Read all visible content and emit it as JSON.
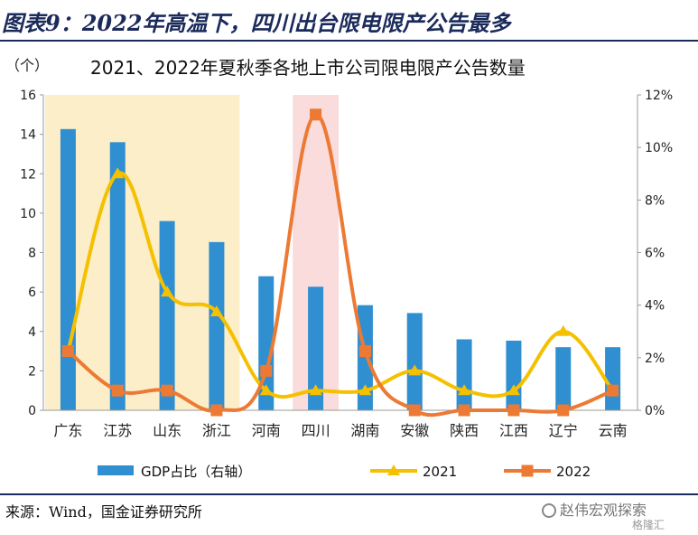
{
  "header": {
    "title": "图表9：2022年高温下，四川出台限电限产公告最多"
  },
  "footer": {
    "source": "来源：Wind，国金证券研究所",
    "watermark": "赵伟宏观探索",
    "watermark_sub": "格隆汇"
  },
  "colors": {
    "bar": "#2f8fd0",
    "line_2021": "#f5c000",
    "line_2022": "#ec7a34",
    "shade_yellow": "#fbeec8",
    "shade_pink": "#fadcdc",
    "title_navy": "#1a2a5a"
  },
  "chart_data": {
    "type": "bar",
    "title": "2021、2022年夏秋季各地上市公司限电限产公告数量",
    "left_unit": "（个）",
    "categories": [
      "广东",
      "江苏",
      "山东",
      "浙江",
      "河南",
      "四川",
      "湖南",
      "安徽",
      "陕西",
      "江西",
      "辽宁",
      "云南"
    ],
    "y_left": {
      "min": 0,
      "max": 16,
      "ticks": [
        "0",
        "2",
        "4",
        "6",
        "8",
        "10",
        "12",
        "14",
        "16"
      ]
    },
    "y_right": {
      "min": 0,
      "max": 12,
      "ticks": [
        "0%",
        "2%",
        "4%",
        "6%",
        "8%",
        "10%",
        "12%"
      ]
    },
    "series": [
      {
        "name": "GDP占比（右轴）",
        "kind": "bar",
        "axis": "right",
        "values": [
          10.7,
          10.2,
          7.2,
          6.4,
          5.1,
          4.7,
          4.0,
          3.7,
          2.7,
          2.65,
          2.4,
          2.4
        ]
      },
      {
        "name": "2021",
        "kind": "line",
        "axis": "left",
        "marker": "triangle",
        "values": [
          3,
          12,
          6,
          5,
          1,
          1,
          1,
          2,
          1,
          1,
          4,
          1
        ]
      },
      {
        "name": "2022",
        "kind": "line",
        "axis": "left",
        "marker": "square",
        "values": [
          3,
          1,
          1,
          0,
          2,
          15,
          3,
          0,
          0,
          0,
          0,
          1
        ]
      }
    ],
    "highlight_regions": [
      {
        "from": "广东",
        "to": "浙江",
        "color": "yellow"
      },
      {
        "from": "四川",
        "to": "四川",
        "color": "pink"
      }
    ],
    "legend_position": "bottom",
    "grid": false
  }
}
